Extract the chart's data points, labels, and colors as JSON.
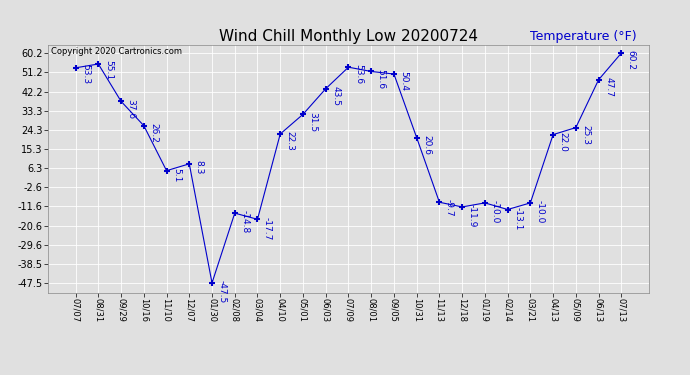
{
  "title": "Wind Chill Monthly Low 20200724",
  "ylabel": "Temperature (°F)",
  "copyright": "Copyright 2020 Cartronics.com",
  "x_labels": [
    "07/07",
    "08/31",
    "09/29",
    "10/16",
    "11/10",
    "12/07",
    "01/30",
    "02/08",
    "03/04",
    "04/10",
    "05/01",
    "06/03",
    "07/09",
    "08/01",
    "09/05",
    "10/31",
    "11/13",
    "12/18",
    "01/19",
    "02/14",
    "03/21",
    "04/13",
    "05/09",
    "06/13",
    "07/13"
  ],
  "y_values": [
    53.3,
    55.1,
    37.6,
    26.2,
    5.1,
    8.3,
    -47.5,
    -14.8,
    -17.7,
    22.3,
    31.5,
    43.5,
    53.6,
    51.6,
    50.4,
    20.6,
    -9.7,
    -11.9,
    -10.0,
    -13.1,
    -10.0,
    22.0,
    25.3,
    47.7,
    60.2
  ],
  "yticks": [
    60.2,
    51.2,
    42.2,
    33.3,
    24.3,
    15.3,
    6.3,
    -2.6,
    -11.6,
    -20.6,
    -29.6,
    -38.5,
    -47.5
  ],
  "ylim": [
    -52.0,
    64.0
  ],
  "line_color": "#0000cc",
  "marker": "+",
  "marker_size": 5,
  "marker_linewidth": 1.5,
  "label_fontsize": 6.5,
  "title_fontsize": 11,
  "background_color": "#e0e0e0",
  "grid_color": "#ffffff",
  "ylabel_color": "#0000cc",
  "ylabel_fontsize": 9,
  "copyright_fontsize": 6,
  "xtick_fontsize": 6,
  "ytick_fontsize": 7
}
